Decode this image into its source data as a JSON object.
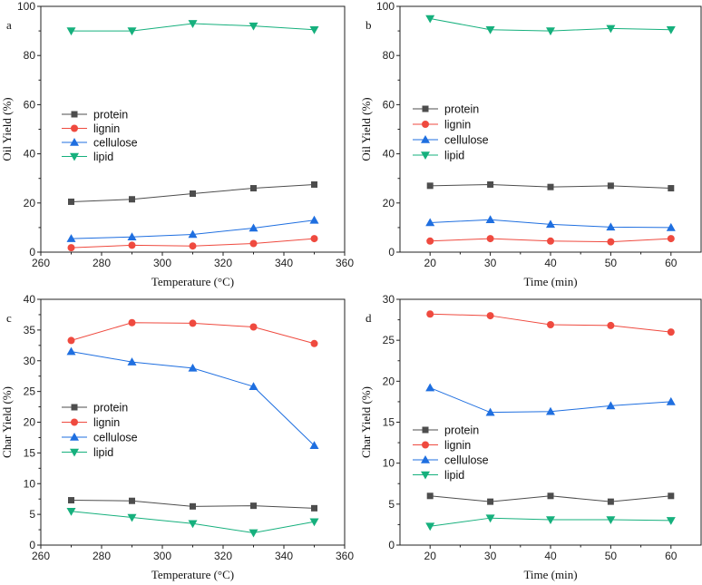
{
  "colors": {
    "protein": "#4d4d4d",
    "lignin": "#ef4a3f",
    "cellulose": "#1f6fe0",
    "lipid": "#16b07d"
  },
  "chart_data": [
    {
      "id": "a",
      "panel_label": "a",
      "type": "line",
      "xlabel": "Temperature (°C)",
      "ylabel": "Oil Yield (%)",
      "xlim": [
        260,
        360
      ],
      "ylim": [
        0,
        100
      ],
      "xticks": [
        260,
        280,
        300,
        320,
        340,
        360
      ],
      "yticks": [
        0,
        20,
        40,
        60,
        80,
        100
      ],
      "x": [
        270,
        290,
        310,
        330,
        350
      ],
      "legend_position": "middle-left",
      "series": [
        {
          "name": "protein",
          "marker": "square",
          "values": [
            20.5,
            21.5,
            23.8,
            26.0,
            27.5
          ]
        },
        {
          "name": "lignin",
          "marker": "circle",
          "values": [
            1.8,
            2.8,
            2.5,
            3.5,
            5.5
          ]
        },
        {
          "name": "cellulose",
          "marker": "triangle-up",
          "values": [
            5.5,
            6.2,
            7.2,
            9.8,
            13.0
          ]
        },
        {
          "name": "lipid",
          "marker": "triangle-down",
          "values": [
            90.0,
            90.0,
            93.0,
            92.0,
            90.5
          ]
        }
      ]
    },
    {
      "id": "b",
      "panel_label": "b",
      "type": "line",
      "xlabel": "Time (min)",
      "ylabel": "Oil Yield (%)",
      "xlim": [
        15,
        65
      ],
      "ylim": [
        0,
        100
      ],
      "xticks": [
        20,
        30,
        40,
        50,
        60
      ],
      "yticks": [
        0,
        20,
        40,
        60,
        80,
        100
      ],
      "x": [
        20,
        30,
        40,
        50,
        60
      ],
      "legend_position": "middle-left",
      "series": [
        {
          "name": "protein",
          "marker": "square",
          "values": [
            27.0,
            27.5,
            26.5,
            27.0,
            26.0
          ]
        },
        {
          "name": "lignin",
          "marker": "circle",
          "values": [
            4.5,
            5.5,
            4.5,
            4.2,
            5.5
          ]
        },
        {
          "name": "cellulose",
          "marker": "triangle-up",
          "values": [
            12.0,
            13.2,
            11.3,
            10.2,
            10.0
          ]
        },
        {
          "name": "lipid",
          "marker": "triangle-down",
          "values": [
            95.0,
            90.5,
            90.0,
            91.0,
            90.5
          ]
        }
      ]
    },
    {
      "id": "c",
      "panel_label": "c",
      "type": "line",
      "xlabel": "Temperature (°C)",
      "ylabel": "Char Yield (%)",
      "xlim": [
        260,
        360
      ],
      "ylim": [
        0,
        40
      ],
      "xticks": [
        260,
        280,
        300,
        320,
        340,
        360
      ],
      "yticks": [
        0,
        5,
        10,
        15,
        20,
        25,
        30,
        35,
        40
      ],
      "x": [
        270,
        290,
        310,
        330,
        350
      ],
      "legend_position": "lower-left",
      "series": [
        {
          "name": "protein",
          "marker": "square",
          "values": [
            7.3,
            7.2,
            6.3,
            6.4,
            6.0
          ]
        },
        {
          "name": "lignin",
          "marker": "circle",
          "values": [
            33.3,
            36.2,
            36.1,
            35.5,
            32.8
          ]
        },
        {
          "name": "cellulose",
          "marker": "triangle-up",
          "values": [
            31.5,
            29.8,
            28.8,
            25.8,
            16.2
          ]
        },
        {
          "name": "lipid",
          "marker": "triangle-down",
          "values": [
            5.5,
            4.5,
            3.5,
            2.0,
            3.8
          ]
        }
      ]
    },
    {
      "id": "d",
      "panel_label": "d",
      "type": "line",
      "xlabel": "Time (min)",
      "ylabel": "Char Yield (%)",
      "xlim": [
        15,
        65
      ],
      "ylim": [
        0,
        30
      ],
      "xticks": [
        20,
        30,
        40,
        50,
        60
      ],
      "yticks": [
        0,
        5,
        10,
        15,
        20,
        25,
        30
      ],
      "x": [
        20,
        30,
        40,
        50,
        60
      ],
      "legend_position": "lower-left",
      "series": [
        {
          "name": "protein",
          "marker": "square",
          "values": [
            6.0,
            5.3,
            6.0,
            5.3,
            6.0
          ]
        },
        {
          "name": "lignin",
          "marker": "circle",
          "values": [
            28.2,
            28.0,
            26.9,
            26.8,
            26.0
          ]
        },
        {
          "name": "cellulose",
          "marker": "triangle-up",
          "values": [
            19.2,
            16.2,
            16.3,
            17.0,
            17.5
          ]
        },
        {
          "name": "lipid",
          "marker": "triangle-down",
          "values": [
            2.3,
            3.3,
            3.1,
            3.1,
            3.0
          ]
        }
      ]
    }
  ]
}
